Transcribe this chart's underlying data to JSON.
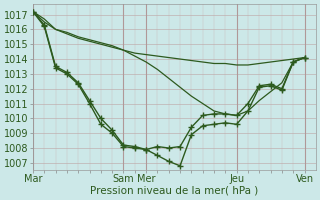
{
  "background_color": "#cce8e8",
  "grid_minor_color": "#b8c8c8",
  "grid_major_color": "#a8b8b8",
  "line_color": "#2d5a1e",
  "xlabel": "Pression niveau de la mer( hPa )",
  "ylim": [
    1006.5,
    1017.7
  ],
  "yticks": [
    1007,
    1008,
    1009,
    1010,
    1011,
    1012,
    1013,
    1014,
    1015,
    1016,
    1017
  ],
  "day_labels": [
    "Mar",
    "Sam",
    "Mer",
    "Jeu",
    "Ven"
  ],
  "day_positions": [
    0,
    96,
    120,
    216,
    288
  ],
  "xlim": [
    0,
    300
  ],
  "s1x": [
    0,
    12,
    24,
    36,
    48,
    60,
    72,
    84,
    96,
    108,
    120,
    132,
    144,
    156,
    168,
    180,
    192,
    204,
    216,
    228,
    240,
    252,
    264,
    276,
    288
  ],
  "s1y": [
    1017.2,
    1016.7,
    1016.0,
    1015.7,
    1015.4,
    1015.2,
    1015.0,
    1014.8,
    1014.6,
    1014.4,
    1014.3,
    1014.2,
    1014.1,
    1014.0,
    1013.9,
    1013.8,
    1013.7,
    1013.7,
    1013.6,
    1013.6,
    1013.7,
    1013.8,
    1013.9,
    1014.0,
    1014.1
  ],
  "s2x": [
    0,
    12,
    24,
    36,
    48,
    60,
    72,
    84,
    96,
    108,
    120,
    132,
    144,
    156,
    168,
    180,
    192,
    204,
    216,
    228,
    240,
    252,
    264,
    276,
    288
  ],
  "s2y": [
    1017.2,
    1016.5,
    1016.0,
    1015.8,
    1015.5,
    1015.3,
    1015.1,
    1014.9,
    1014.6,
    1014.2,
    1013.8,
    1013.3,
    1012.7,
    1012.1,
    1011.5,
    1011.0,
    1010.5,
    1010.3,
    1010.2,
    1010.5,
    1011.2,
    1011.8,
    1012.4,
    1013.8,
    1014.1
  ],
  "s3x": [
    0,
    12,
    24,
    36,
    48,
    60,
    72,
    84,
    96,
    108,
    120,
    132,
    144,
    156,
    168,
    180,
    192,
    204,
    216,
    228,
    240,
    252,
    264,
    276,
    288
  ],
  "s3y": [
    1017.2,
    1016.3,
    1013.5,
    1013.1,
    1012.4,
    1011.2,
    1010.0,
    1009.2,
    1008.2,
    1008.1,
    1007.9,
    1008.1,
    1008.0,
    1008.1,
    1009.4,
    1010.2,
    1010.3,
    1010.3,
    1010.2,
    1011.0,
    1012.2,
    1012.3,
    1012.0,
    1013.8,
    1014.1
  ],
  "s4x": [
    0,
    12,
    24,
    36,
    48,
    60,
    72,
    84,
    96,
    108,
    120,
    132,
    144,
    156,
    168,
    180,
    192,
    204,
    216,
    228,
    240,
    252,
    264,
    276,
    288
  ],
  "s4y": [
    1017.2,
    1016.2,
    1013.4,
    1013.0,
    1012.3,
    1011.0,
    1009.6,
    1009.0,
    1008.1,
    1008.0,
    1007.9,
    1007.5,
    1007.1,
    1006.8,
    1008.9,
    1009.5,
    1009.6,
    1009.7,
    1009.6,
    1010.5,
    1012.1,
    1012.2,
    1011.9,
    1013.8,
    1014.1
  ]
}
